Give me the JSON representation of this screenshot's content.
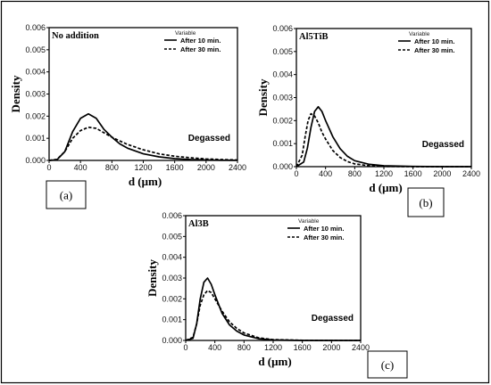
{
  "chart_data": [
    {
      "id": "a",
      "type": "line",
      "panel_label": "(a)",
      "annotation": "No addition",
      "corner_text": "Degassed",
      "xlabel": "d (μm)",
      "ylabel": "Density",
      "xlim": [
        0,
        2400
      ],
      "ylim": [
        0,
        0.006
      ],
      "xticks": [
        "0",
        "400",
        "800",
        "1200",
        "1600",
        "2000",
        "2400"
      ],
      "yticks": [
        "0.000",
        "0.001",
        "0.002",
        "0.003",
        "0.004",
        "0.005",
        "0.006"
      ],
      "legend_title": "Variable",
      "legend_position": "top-right",
      "series": [
        {
          "name": "After 10 min.",
          "style": "solid",
          "x": [
            0,
            100,
            200,
            300,
            400,
            500,
            600,
            700,
            800,
            900,
            1000,
            1200,
            1400,
            1600,
            1800,
            2000,
            2200,
            2400
          ],
          "y": [
            0,
            3e-05,
            0.0004,
            0.0013,
            0.0019,
            0.0021,
            0.0019,
            0.0014,
            0.00105,
            0.00075,
            0.00055,
            0.0003,
            0.00016,
            8e-05,
            4e-05,
            2e-05,
            1e-05,
            5e-06
          ]
        },
        {
          "name": "After 30 min.",
          "style": "dashed",
          "x": [
            0,
            100,
            200,
            300,
            400,
            500,
            600,
            700,
            800,
            900,
            1000,
            1200,
            1400,
            1600,
            1800,
            2000,
            2200,
            2400
          ],
          "y": [
            0,
            5e-05,
            0.0004,
            0.001,
            0.00135,
            0.0015,
            0.00145,
            0.00125,
            0.00105,
            0.00088,
            0.00072,
            0.00048,
            0.0003,
            0.00019,
            0.00012,
            7e-05,
            4e-05,
            2e-05
          ]
        }
      ]
    },
    {
      "id": "b",
      "type": "line",
      "panel_label": "(b)",
      "annotation": "Al5TiB",
      "corner_text": "Degassed",
      "xlabel": "d (μm)",
      "ylabel": "Density",
      "xlim": [
        0,
        2400
      ],
      "ylim": [
        0,
        0.006
      ],
      "xticks": [
        "0",
        "400",
        "800",
        "1200",
        "1600",
        "2000",
        "2400"
      ],
      "yticks": [
        "0.000",
        "0.001",
        "0.002",
        "0.003",
        "0.004",
        "0.005",
        "0.006"
      ],
      "legend_title": "Variable",
      "legend_position": "top-right",
      "series": [
        {
          "name": "After 10 min.",
          "style": "solid",
          "x": [
            0,
            100,
            150,
            200,
            250,
            300,
            350,
            400,
            500,
            600,
            700,
            800,
            1000,
            1200,
            1600,
            2000,
            2400
          ],
          "y": [
            0,
            0.0002,
            0.0008,
            0.0017,
            0.0024,
            0.0026,
            0.0024,
            0.002,
            0.0013,
            0.00078,
            0.00045,
            0.00026,
            0.0001,
            4e-05,
            1e-05,
            0,
            0
          ]
        },
        {
          "name": "After 30 min.",
          "style": "dashed",
          "x": [
            0,
            80,
            120,
            160,
            200,
            250,
            300,
            350,
            400,
            500,
            600,
            700,
            800,
            1000,
            1200,
            1600,
            2400
          ],
          "y": [
            0,
            0.0005,
            0.0013,
            0.002,
            0.0023,
            0.0022,
            0.0019,
            0.0015,
            0.0012,
            0.0007,
            0.0004,
            0.00022,
            0.00012,
            4e-05,
            1e-05,
            0,
            0
          ]
        }
      ]
    },
    {
      "id": "c",
      "type": "line",
      "panel_label": "(c)",
      "annotation": "Al3B",
      "corner_text": "Degassed",
      "xlabel": "d (μm)",
      "ylabel": "Density",
      "xlim": [
        0,
        2400
      ],
      "ylim": [
        0,
        0.006
      ],
      "xticks": [
        "0",
        "400",
        "800",
        "1200",
        "1600",
        "2000",
        "2400"
      ],
      "yticks": [
        "0.000",
        "0.001",
        "0.002",
        "0.003",
        "0.004",
        "0.005",
        "0.006"
      ],
      "legend_title": "Variable",
      "legend_position": "top-right",
      "series": [
        {
          "name": "After 10 min.",
          "style": "solid",
          "x": [
            0,
            100,
            150,
            200,
            250,
            300,
            350,
            400,
            500,
            600,
            700,
            800,
            1000,
            1200,
            1600,
            2400
          ],
          "y": [
            0,
            0.0001,
            0.0008,
            0.002,
            0.0028,
            0.003,
            0.0027,
            0.0022,
            0.0013,
            0.00075,
            0.00045,
            0.00026,
            8e-05,
            2e-05,
            0,
            0
          ]
        },
        {
          "name": "After 30 min.",
          "style": "dashed",
          "x": [
            0,
            100,
            150,
            200,
            250,
            300,
            350,
            400,
            500,
            600,
            700,
            800,
            1000,
            1200,
            1600,
            2400
          ],
          "y": [
            0,
            0.00015,
            0.0008,
            0.0017,
            0.0022,
            0.0024,
            0.0023,
            0.002,
            0.0014,
            0.0009,
            0.00058,
            0.00036,
            0.00013,
            4e-05,
            1e-05,
            0
          ]
        }
      ]
    }
  ]
}
